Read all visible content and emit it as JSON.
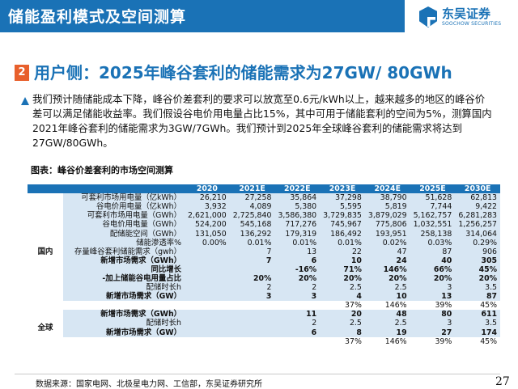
{
  "header": {
    "title": "储能盈利模式及空间测算",
    "logo_cn": "东吴证券",
    "logo_en": "SOOCHOW SECURITIES",
    "brand_color": "#1a72b6"
  },
  "section": {
    "number": "2",
    "title": "用户侧：2025年峰谷套利的储能需求为27GW/ 80GWh"
  },
  "paragraph": "我们预计随储能成本下降，峰谷价差套利的要求可以放宽至0.6元/kWh以上，越来越多的地区的峰谷价差可以满足储能收益率。我们假设谷电价用电量占比15%，其中可用于储能套利的空间为5%，测算国内2021年峰谷套利的储能需求为3GW/7GWh。我们预计到2025年全球峰谷套利的储能需求将达到27GW/80GWh。",
  "table": {
    "caption": "图表：峰谷价差套利的市场空间测算",
    "years": [
      "2020",
      "2021E",
      "2022E",
      "2023E",
      "2024E",
      "2025E",
      "2030E"
    ],
    "domestic_label": "国内",
    "global_label": "全球",
    "domestic_rows": [
      {
        "label": "可套利市场用电量（亿kWh）",
        "values": [
          "26,210",
          "27,258",
          "35,864",
          "37,298",
          "38,790",
          "51,628",
          "62,813"
        ]
      },
      {
        "label": "谷电价用电量（亿kWh）",
        "values": [
          "3,932",
          "4,089",
          "5,380",
          "5,595",
          "5,819",
          "7,744",
          "9,422"
        ]
      },
      {
        "label": "可套利市场用电量（GWh）",
        "values": [
          "2,621,000",
          "2,725,840",
          "3,586,380",
          "3,729,835",
          "3,879,029",
          "5,162,757",
          "6,281,283"
        ]
      },
      {
        "label": "谷电价用电量（GWh）",
        "values": [
          "524,200",
          "545,168",
          "717,276",
          "745,967",
          "775,806",
          "1,032,551",
          "1,256,257"
        ]
      },
      {
        "label": "配储能空间（GWh）",
        "values": [
          "131,050",
          "136,292",
          "179,319",
          "186,492",
          "193,951",
          "258,138",
          "314,064"
        ]
      },
      {
        "label": "储能渗透率%",
        "values": [
          "0.00%",
          "0.01%",
          "0.01%",
          "0.01%",
          "0.02%",
          "0.03%",
          "0.29%"
        ]
      },
      {
        "label": "存量峰谷套利储能需求（gwh）",
        "values": [
          "",
          "7",
          "13",
          "22",
          "47",
          "87",
          "906"
        ]
      },
      {
        "label": "新增市场需求（GWh）",
        "values": [
          "",
          "7",
          "6",
          "10",
          "24",
          "40",
          "305"
        ]
      },
      {
        "label": "同比增长",
        "values": [
          "",
          "",
          "-16%",
          "71%",
          "146%",
          "66%",
          "45%"
        ]
      },
      {
        "label": "-加上储能谷电用量占比",
        "values": [
          "",
          "20%",
          "20%",
          "20%",
          "20%",
          "20%",
          "20%"
        ]
      },
      {
        "label": "配储时长h",
        "values": [
          "",
          "2",
          "2",
          "2.5",
          "2.5",
          "3",
          "3.5"
        ]
      },
      {
        "label": "新增市场需求（GW）",
        "values": [
          "",
          "3",
          "3",
          "4",
          "10",
          "13",
          "87"
        ]
      },
      {
        "label": "",
        "values": [
          "",
          "",
          "",
          "37%",
          "146%",
          "39%",
          "45%"
        ]
      }
    ],
    "global_rows": [
      {
        "label": "新增市场需求（GWh）",
        "values": [
          "",
          "",
          "11",
          "20",
          "48",
          "80",
          "611"
        ]
      },
      {
        "label": "配储时长h",
        "values": [
          "",
          "",
          "2",
          "2.5",
          "2.5",
          "3",
          "3.5"
        ]
      },
      {
        "label": "新增市场需求（GW）",
        "values": [
          "",
          "",
          "6",
          "8",
          "19",
          "27",
          "174"
        ]
      },
      {
        "label": "",
        "values": [
          "",
          "",
          "",
          "37%",
          "146%",
          "39%",
          "45%"
        ]
      }
    ]
  },
  "footer": {
    "source": "数据来源：国家电网、北极星电力网、工信部，东吴证券研究所",
    "page_number": "27"
  }
}
